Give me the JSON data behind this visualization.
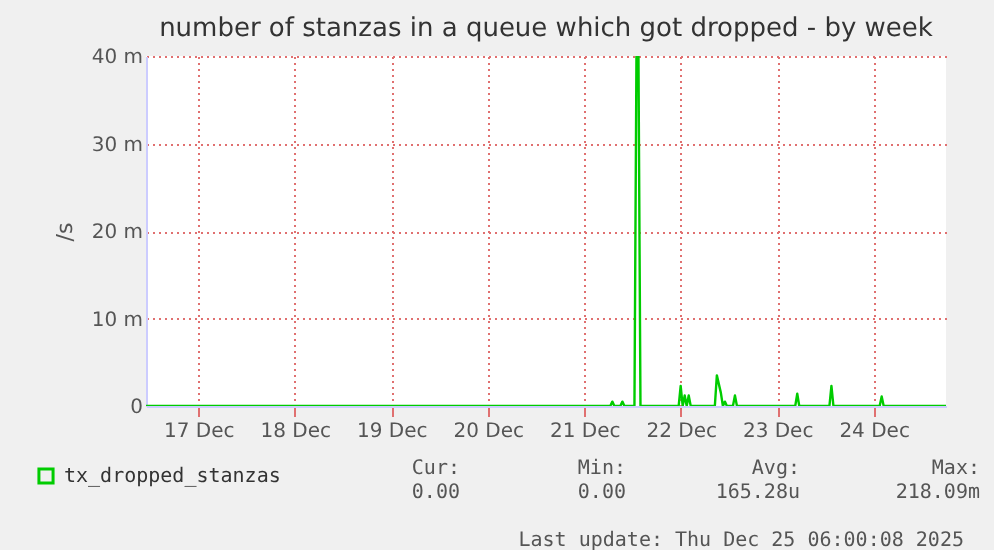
{
  "chart_data": {
    "type": "line",
    "title": "number of stanzas in a queue which got dropped - by week",
    "ylabel": "/s",
    "xlim": [
      "2025-12-16T23:00",
      "2025-12-25T06:00"
    ],
    "xticks": [
      {
        "value": "2025-12-17T12:00",
        "label": "17 Dec"
      },
      {
        "value": "2025-12-18T12:00",
        "label": "18 Dec"
      },
      {
        "value": "2025-12-19T12:00",
        "label": "19 Dec"
      },
      {
        "value": "2025-12-20T12:00",
        "label": "20 Dec"
      },
      {
        "value": "2025-12-21T12:00",
        "label": "21 Dec"
      },
      {
        "value": "2025-12-22T12:00",
        "label": "22 Dec"
      },
      {
        "value": "2025-12-23T12:00",
        "label": "23 Dec"
      },
      {
        "value": "2025-12-24T12:00",
        "label": "24 Dec"
      }
    ],
    "ylim": [
      0,
      40
    ],
    "yticks": [
      0,
      {
        "value": 10,
        "label": "10 m"
      },
      {
        "value": 20,
        "label": "20 m"
      },
      {
        "value": 30,
        "label": "30 m"
      },
      {
        "value": 40,
        "label": "40 m"
      }
    ],
    "x": [
      "2025-12-16T23:00",
      "2025-12-21T18:30",
      "2025-12-21T19:00",
      "2025-12-21T19:30",
      "2025-12-21T21:00",
      "2025-12-21T21:30",
      "2025-12-21T22:00",
      "2025-12-22T00:30",
      "2025-12-22T01:00",
      "2025-12-22T01:30",
      "2025-12-22T02:00",
      "2025-12-22T11:30",
      "2025-12-22T12:00",
      "2025-12-22T12:30",
      "2025-12-22T13:00",
      "2025-12-22T13:30",
      "2025-12-22T14:00",
      "2025-12-22T14:30",
      "2025-12-22T20:30",
      "2025-12-22T21:00",
      "2025-12-22T22:00",
      "2025-12-22T22:30",
      "2025-12-22T23:00",
      "2025-12-22T23:30",
      "2025-12-23T00:00",
      "2025-12-23T01:00",
      "2025-12-23T01:30",
      "2025-12-23T02:00",
      "2025-12-23T16:30",
      "2025-12-23T17:00",
      "2025-12-23T17:30",
      "2025-12-24T01:00",
      "2025-12-24T01:30",
      "2025-12-24T02:00",
      "2025-12-24T13:30",
      "2025-12-24T14:00",
      "2025-12-24T14:30",
      "2025-12-25T06:00"
    ],
    "series": [
      {
        "name": "tx_dropped_stanzas",
        "color": "#00cc00",
        "values": [
          0,
          0,
          0.5,
          0,
          0,
          0.5,
          0,
          0,
          40,
          40,
          0,
          0,
          2.3,
          0,
          1.2,
          0,
          1.2,
          0,
          0,
          3.5,
          1.5,
          0,
          0.5,
          0,
          0,
          0,
          1.2,
          0,
          0,
          1.4,
          0,
          0,
          2.3,
          0,
          0,
          1.1,
          0,
          0
        ]
      }
    ],
    "grid": true,
    "legend": "bottom left",
    "marker": "none",
    "line_style": "solid",
    "annotations": [
      "Cur:",
      "Min:",
      "Avg:",
      "Max:",
      "0.00",
      "0.00",
      "165.28u",
      "218.09m",
      "Last update: Thu Dec 25 06:00:08 2025"
    ]
  }
}
